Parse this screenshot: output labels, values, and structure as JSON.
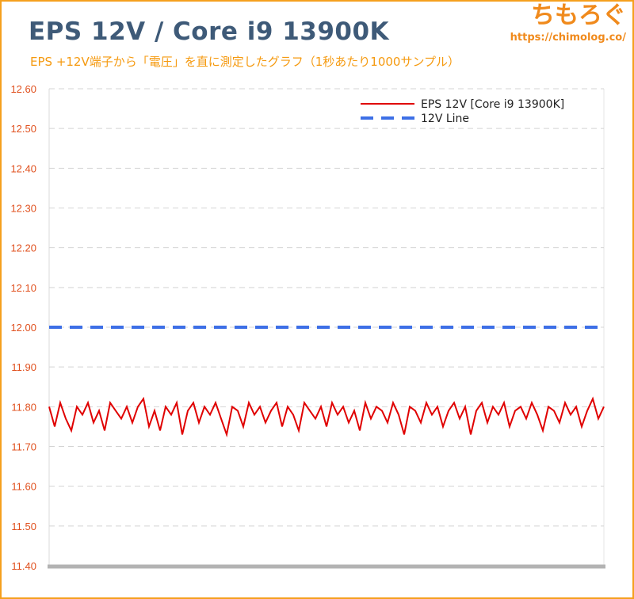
{
  "header": {
    "title": "EPS 12V / Core i9 13900K",
    "subtitle": "EPS +12V端子から「電圧」を直に測定したグラフ（1秒あたり1000サンプル）"
  },
  "brand": {
    "name": "ちもろぐ",
    "url": "https://chimolog.co/"
  },
  "colors": {
    "title": "#3e5a78",
    "subtitle": "#f59a10",
    "brand": "#f08a1c",
    "frame": "#f5a01e",
    "tick": "#e0501e",
    "series_eps": "#e00000",
    "series_line": "#3d6fe6"
  },
  "chart_data": {
    "type": "line",
    "title": "EPS 12V / Core i9 13900K",
    "ylim": [
      11.4,
      12.6
    ],
    "yticks": [
      "12.60",
      "12.50",
      "12.40",
      "12.30",
      "12.20",
      "12.10",
      "12.00",
      "11.90",
      "11.80",
      "11.70",
      "11.60",
      "11.50",
      "11.40"
    ],
    "xlim": [
      0,
      100
    ],
    "grid": true,
    "legend_position": "top-right",
    "series": [
      {
        "name": "EPS 12V [Core i9 13900K]",
        "style": "solid",
        "color": "#e00000",
        "x": [
          0,
          1,
          2,
          3,
          4,
          5,
          6,
          7,
          8,
          9,
          10,
          11,
          12,
          13,
          14,
          15,
          16,
          17,
          18,
          19,
          20,
          21,
          22,
          23,
          24,
          25,
          26,
          27,
          28,
          29,
          30,
          31,
          32,
          33,
          34,
          35,
          36,
          37,
          38,
          39,
          40,
          41,
          42,
          43,
          44,
          45,
          46,
          47,
          48,
          49,
          50,
          51,
          52,
          53,
          54,
          55,
          56,
          57,
          58,
          59,
          60,
          61,
          62,
          63,
          64,
          65,
          66,
          67,
          68,
          69,
          70,
          71,
          72,
          73,
          74,
          75,
          76,
          77,
          78,
          79,
          80,
          81,
          82,
          83,
          84,
          85,
          86,
          87,
          88,
          89,
          90,
          91,
          92,
          93,
          94,
          95,
          96,
          97,
          98,
          99,
          100
        ],
        "values": [
          11.8,
          11.75,
          11.81,
          11.77,
          11.74,
          11.8,
          11.78,
          11.81,
          11.76,
          11.79,
          11.74,
          11.81,
          11.79,
          11.77,
          11.8,
          11.76,
          11.8,
          11.82,
          11.75,
          11.79,
          11.74,
          11.8,
          11.78,
          11.81,
          11.73,
          11.79,
          11.81,
          11.76,
          11.8,
          11.78,
          11.81,
          11.77,
          11.73,
          11.8,
          11.79,
          11.75,
          11.81,
          11.78,
          11.8,
          11.76,
          11.79,
          11.81,
          11.75,
          11.8,
          11.78,
          11.74,
          11.81,
          11.79,
          11.77,
          11.8,
          11.75,
          11.81,
          11.78,
          11.8,
          11.76,
          11.79,
          11.74,
          11.81,
          11.77,
          11.8,
          11.79,
          11.76,
          11.81,
          11.78,
          11.73,
          11.8,
          11.79,
          11.76,
          11.81,
          11.78,
          11.8,
          11.75,
          11.79,
          11.81,
          11.77,
          11.8,
          11.73,
          11.79,
          11.81,
          11.76,
          11.8,
          11.78,
          11.81,
          11.75,
          11.79,
          11.8,
          11.77,
          11.81,
          11.78,
          11.74,
          11.8,
          11.79,
          11.76,
          11.81,
          11.78,
          11.8,
          11.75,
          11.79,
          11.82,
          11.77,
          11.8
        ]
      },
      {
        "name": "12V Line",
        "style": "dashed",
        "color": "#3d6fe6",
        "x": [
          0,
          100
        ],
        "values": [
          12.0,
          12.0
        ]
      }
    ]
  }
}
